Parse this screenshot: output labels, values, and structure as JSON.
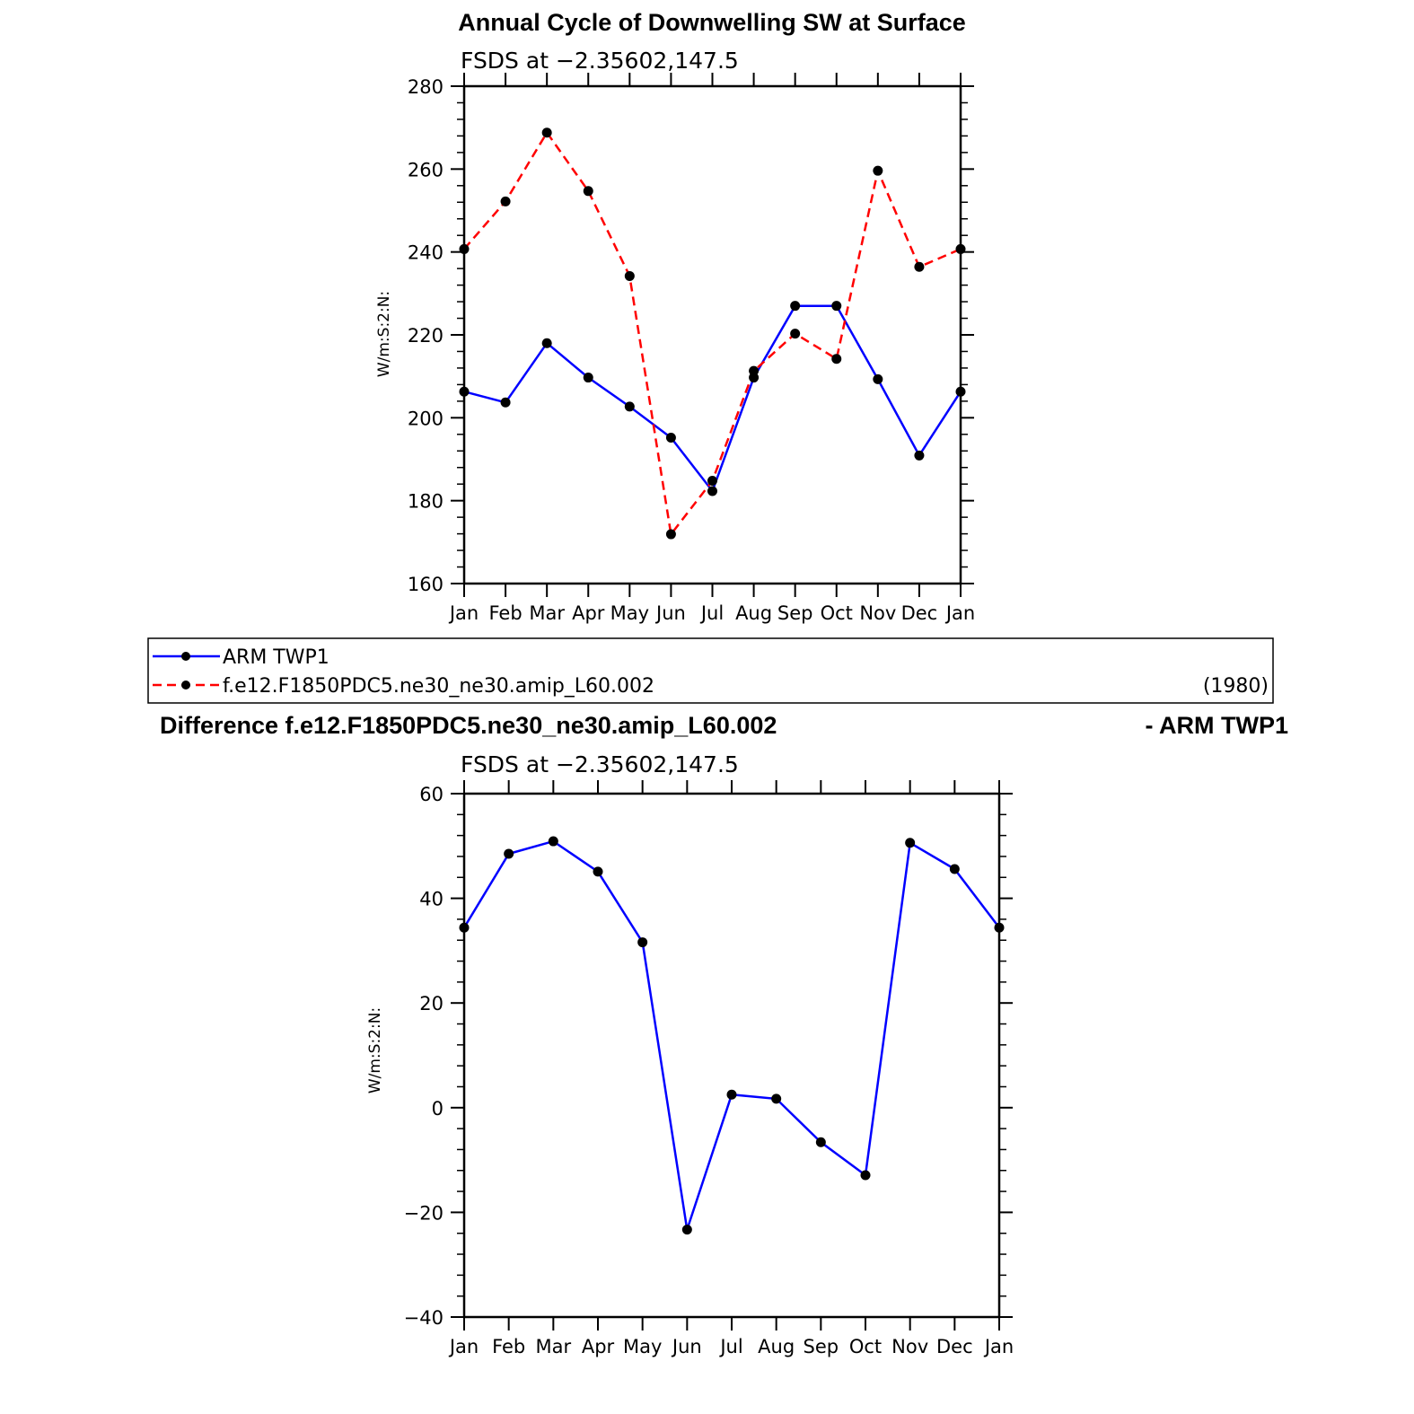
{
  "chart_data": [
    {
      "type": "line",
      "title": "Annual Cycle of Downwelling SW at Surface",
      "subtitle": "FSDS at −2.35602,147.5",
      "ylabel": "W/m:S:2:N:",
      "ylim": [
        160,
        280
      ],
      "yticks": [
        "160",
        "180",
        "200",
        "220",
        "240",
        "260",
        "280"
      ],
      "categories": [
        "Jan",
        "Feb",
        "Mar",
        "Apr",
        "May",
        "Jun",
        "Jul",
        "Aug",
        "Sep",
        "Oct",
        "Nov",
        "Dec",
        "Jan"
      ],
      "grid": false,
      "series": [
        {
          "name": "ARM TWP1",
          "color": "#0000ff",
          "dash": "solid",
          "values": [
            206.3,
            203.7,
            218.0,
            209.7,
            202.7,
            195.2,
            182.3,
            209.7,
            227.0,
            227.0,
            209.3,
            190.9,
            206.3
          ]
        },
        {
          "name": "f.e12.F1850PDC5.ne30_ne30.amip_L60.002",
          "color": "#ff0000",
          "dash": "dashed",
          "values": [
            240.7,
            252.2,
            268.8,
            254.7,
            234.2,
            171.9,
            184.8,
            211.3,
            220.3,
            214.2,
            259.6,
            236.4,
            240.7
          ]
        }
      ]
    },
    {
      "type": "line",
      "title": "Difference f.e12.F1850PDC5.ne30_ne30.amip_L60.002",
      "title_right": "- ARM TWP1",
      "subtitle": "FSDS at −2.35602,147.5",
      "ylabel": "W/m:S:2:N:",
      "ylim": [
        -40,
        60
      ],
      "yticks": [
        "−40",
        "−20",
        "0",
        "20",
        "40",
        "60"
      ],
      "categories": [
        "Jan",
        "Feb",
        "Mar",
        "Apr",
        "May",
        "Jun",
        "Jul",
        "Aug",
        "Sep",
        "Oct",
        "Nov",
        "Dec",
        "Jan"
      ],
      "grid": false,
      "series": [
        {
          "color": "#0000ff",
          "dash": "solid",
          "values": [
            34.4,
            48.5,
            50.9,
            45.1,
            31.6,
            -23.3,
            2.5,
            1.7,
            -6.6,
            -12.9,
            50.6,
            45.6,
            34.4
          ]
        }
      ]
    }
  ],
  "legend": {
    "entries": [
      "ARM TWP1",
      "f.e12.F1850PDC5.ne30_ne30.amip_L60.002"
    ],
    "note": "(1980)"
  }
}
